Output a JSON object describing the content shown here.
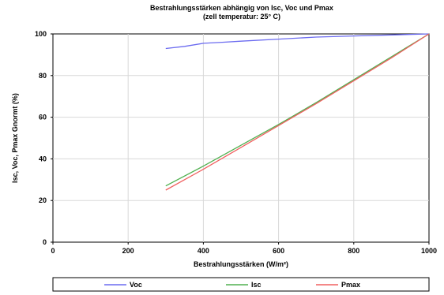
{
  "chart_data": {
    "type": "line",
    "title": "Bestrahlungsstärken abhängig von Isc, Voc und Pmax",
    "subtitle": "(zell temperatur: 25° C)",
    "xlabel": "Bestrahlungsstärken (W/m²)",
    "ylabel": "Isc, Voc, Pmax Gnormt (%)",
    "xlim": [
      0,
      1000
    ],
    "ylim": [
      0,
      100
    ],
    "x_ticks": [
      "0",
      "200",
      "400",
      "600",
      "800",
      "1000"
    ],
    "y_ticks": [
      "0",
      "20",
      "40",
      "60",
      "80",
      "100"
    ],
    "grid": true,
    "legend_position": "bottom",
    "series": [
      {
        "name": "Voc",
        "color": "#6b6bf0",
        "points": [
          [
            300,
            93
          ],
          [
            350,
            94
          ],
          [
            400,
            95.5
          ],
          [
            450,
            96
          ],
          [
            500,
            96.5
          ],
          [
            600,
            97.5
          ],
          [
            700,
            98.5
          ],
          [
            800,
            99
          ],
          [
            900,
            99.5
          ],
          [
            1000,
            100
          ]
        ]
      },
      {
        "name": "Isc",
        "color": "#50b050",
        "points": [
          [
            300,
            27
          ],
          [
            400,
            36.5
          ],
          [
            500,
            46.5
          ],
          [
            600,
            56.5
          ],
          [
            700,
            67
          ],
          [
            800,
            78
          ],
          [
            900,
            89
          ],
          [
            1000,
            100
          ]
        ]
      },
      {
        "name": "Pmax",
        "color": "#f06060",
        "points": [
          [
            300,
            25
          ],
          [
            400,
            35
          ],
          [
            500,
            45.5
          ],
          [
            600,
            56
          ],
          [
            700,
            66.5
          ],
          [
            800,
            77.5
          ],
          [
            900,
            88.5
          ],
          [
            1000,
            100
          ]
        ]
      }
    ]
  }
}
